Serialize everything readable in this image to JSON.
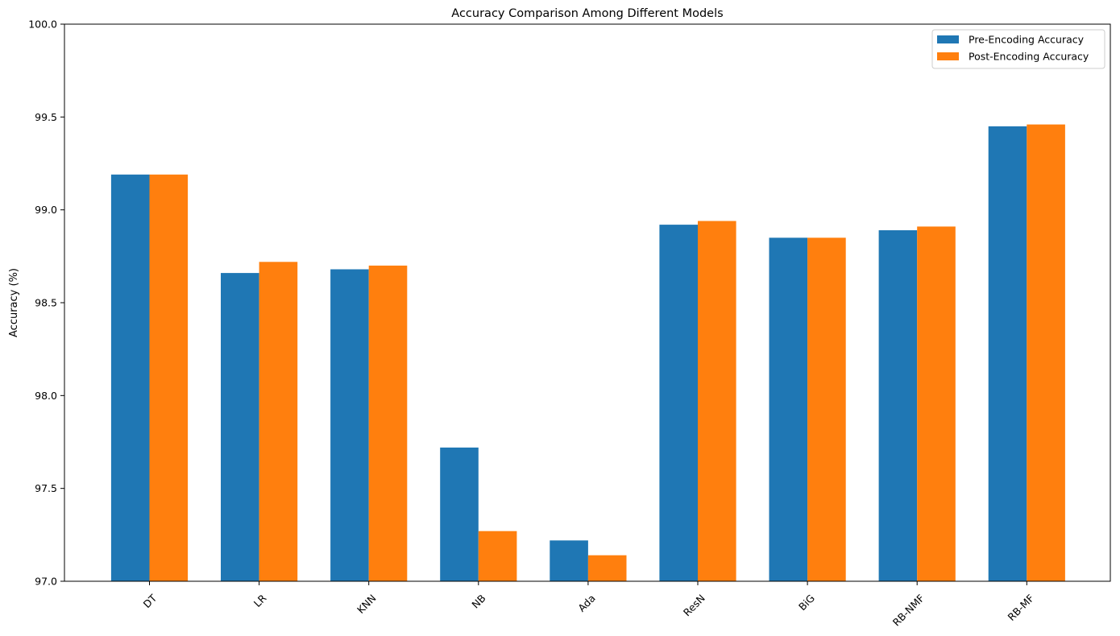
{
  "chart_data": {
    "type": "bar",
    "title": "Accuracy Comparison Among Different Models",
    "xlabel": "",
    "ylabel": "Accuracy (%)",
    "ylim": [
      97.0,
      100.0
    ],
    "yticks": [
      "97.0",
      "97.5",
      "98.0",
      "98.5",
      "99.0",
      "99.5",
      "100.0"
    ],
    "categories": [
      "DT",
      "LR",
      "KNN",
      "NB",
      "Ada",
      "ResN",
      "BiG",
      "RB-NMF",
      "RB-MF"
    ],
    "series": [
      {
        "name": "Pre-Encoding Accuracy",
        "color": "#1f77b4",
        "values": [
          99.19,
          98.66,
          98.68,
          97.72,
          97.22,
          98.92,
          98.85,
          98.89,
          99.45
        ]
      },
      {
        "name": "Post-Encoding Accuracy",
        "color": "#ff7f0e",
        "values": [
          99.19,
          98.72,
          98.7,
          97.27,
          97.14,
          98.94,
          98.85,
          98.91,
          99.46
        ]
      }
    ],
    "grid": false,
    "legend_position": "top-right",
    "xtick_rotation": 45
  }
}
